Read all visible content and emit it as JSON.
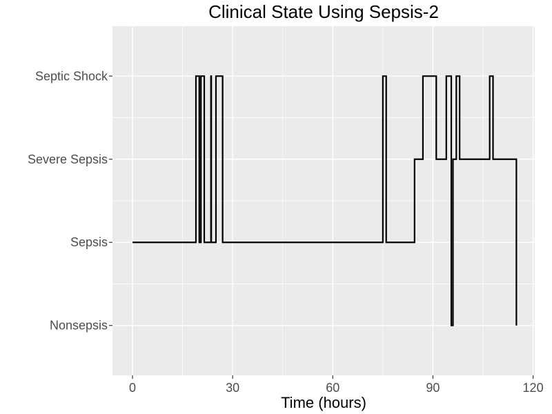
{
  "chart_data": {
    "type": "line",
    "step": true,
    "title": "Clinical State Using Sepsis-2",
    "xlabel": "Time (hours)",
    "ylabel": "",
    "xlim": [
      -6,
      120.5
    ],
    "x_ticks": [
      0,
      30,
      60,
      90,
      120
    ],
    "x_tick_labels": [
      "0",
      "30",
      "60",
      "90",
      "120"
    ],
    "y_categories": [
      "Nonsepsis",
      "Sepsis",
      "Severe Sepsis",
      "Septic Shock"
    ],
    "grid": true,
    "legend": "none",
    "colors": {
      "panel": "#ebebeb",
      "grid": "#ffffff",
      "line": "#000000",
      "tick_label": "#4d4d4d"
    },
    "series": [
      {
        "points": [
          [
            0,
            "Sepsis"
          ],
          [
            19,
            "Septic Shock"
          ],
          [
            20,
            "Sepsis"
          ],
          [
            20.5,
            "Septic Shock"
          ],
          [
            21.5,
            "Sepsis"
          ],
          [
            23.5,
            "Septic Shock"
          ],
          [
            23.6,
            "Sepsis"
          ],
          [
            25,
            "Septic Shock"
          ],
          [
            27,
            "Sepsis"
          ],
          [
            75,
            "Septic Shock"
          ],
          [
            76,
            "Sepsis"
          ],
          [
            84.5,
            "Severe Sepsis"
          ],
          [
            87,
            "Septic Shock"
          ],
          [
            91,
            "Severe Sepsis"
          ],
          [
            94,
            "Septic Shock"
          ],
          [
            95.5,
            "Nonsepsis"
          ],
          [
            96,
            "Severe Sepsis"
          ],
          [
            97,
            "Septic Shock"
          ],
          [
            98,
            "Severe Sepsis"
          ],
          [
            107,
            "Septic Shock"
          ],
          [
            108,
            "Severe Sepsis"
          ],
          [
            115,
            "Nonsepsis"
          ]
        ]
      }
    ]
  }
}
